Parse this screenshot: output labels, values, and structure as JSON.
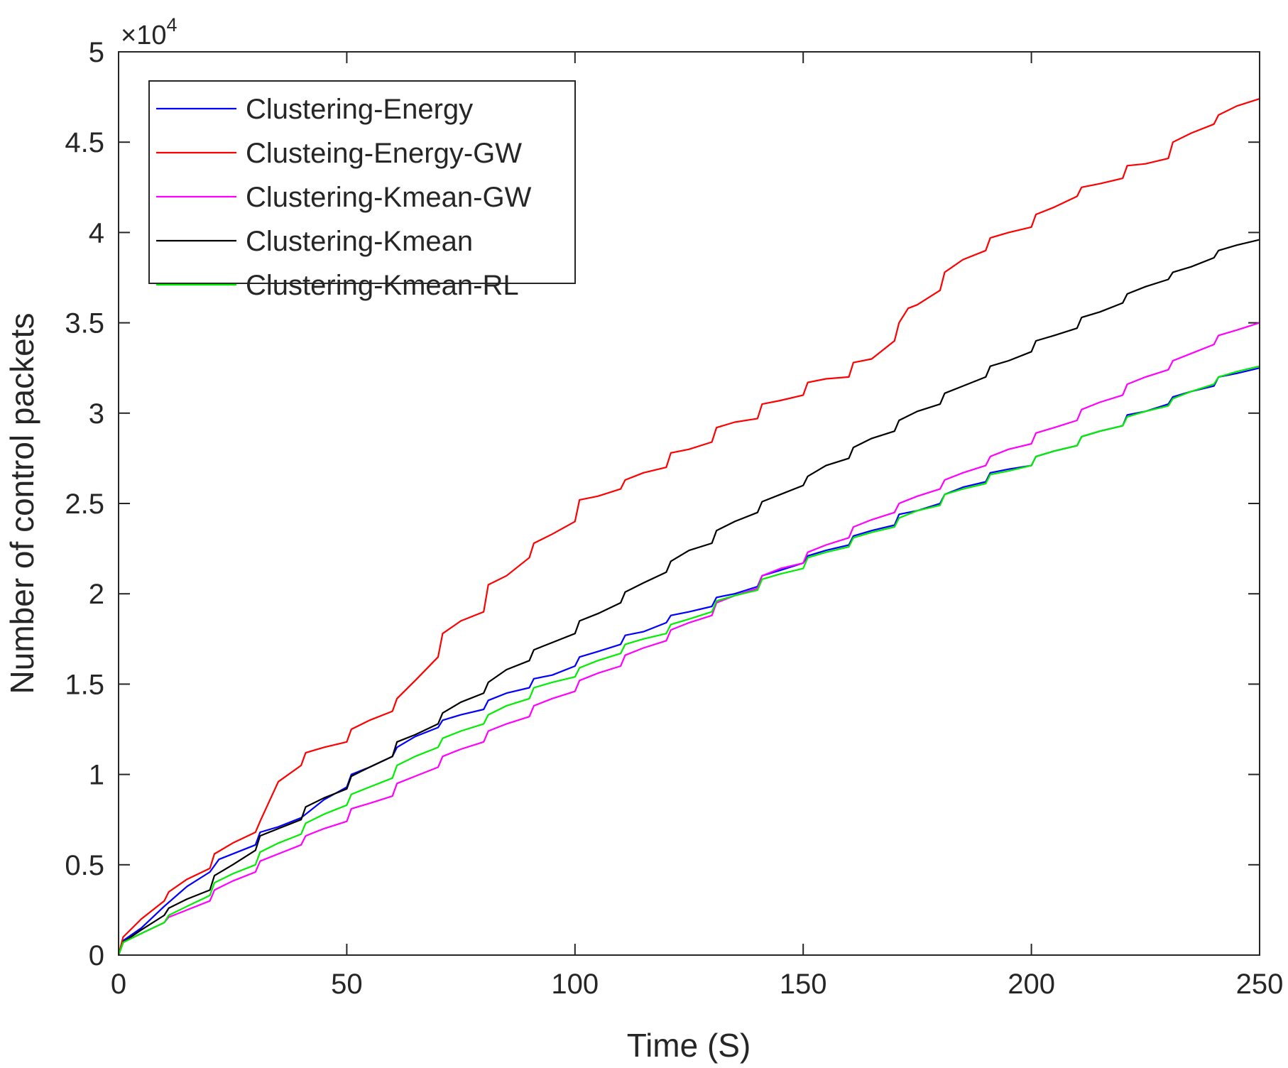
{
  "chart_data": {
    "type": "line",
    "xlabel": "Time (S)",
    "ylabel": "Number of control packets",
    "y_multiplier_label": "×10",
    "y_multiplier_exponent": "4",
    "xlim": [
      0,
      250
    ],
    "ylim": [
      0,
      5
    ],
    "xticks": [
      0,
      50,
      100,
      150,
      200,
      250
    ],
    "xtick_labels": [
      "0",
      "50",
      "100",
      "150",
      "200",
      "250"
    ],
    "yticks": [
      0,
      0.5,
      1,
      1.5,
      2,
      2.5,
      3,
      3.5,
      4,
      4.5,
      5
    ],
    "ytick_labels": [
      "0",
      "0.5",
      "1",
      "1.5",
      "2",
      "2.5",
      "3",
      "3.5",
      "4",
      "4.5",
      "5"
    ],
    "grid": false,
    "legend_position": "top-left",
    "series": [
      {
        "name": "Clustering-Energy",
        "color": "#0000ff",
        "x": [
          0,
          1,
          5,
          10,
          15,
          20,
          22,
          30,
          31,
          35,
          40,
          45,
          50,
          51,
          55,
          60,
          61,
          65,
          70,
          71,
          75,
          80,
          81,
          85,
          90,
          91,
          95,
          100,
          101,
          105,
          110,
          111,
          115,
          120,
          121,
          125,
          130,
          131,
          135,
          140,
          141,
          145,
          150,
          151,
          155,
          160,
          161,
          165,
          170,
          171,
          175,
          180,
          181,
          185,
          190,
          191,
          195,
          200,
          201,
          205,
          210,
          211,
          215,
          220,
          221,
          225,
          230,
          231,
          235,
          240,
          241,
          245,
          250
        ],
        "y": [
          0,
          0.08,
          0.15,
          0.27,
          0.38,
          0.46,
          0.53,
          0.61,
          0.68,
          0.71,
          0.76,
          0.86,
          0.93,
          1.0,
          1.04,
          1.1,
          1.15,
          1.21,
          1.26,
          1.3,
          1.33,
          1.36,
          1.41,
          1.45,
          1.48,
          1.53,
          1.55,
          1.6,
          1.65,
          1.68,
          1.72,
          1.77,
          1.79,
          1.84,
          1.88,
          1.9,
          1.93,
          1.98,
          2.0,
          2.04,
          2.1,
          2.13,
          2.17,
          2.21,
          2.24,
          2.27,
          2.32,
          2.35,
          2.38,
          2.44,
          2.46,
          2.5,
          2.55,
          2.59,
          2.62,
          2.67,
          2.69,
          2.71,
          2.76,
          2.79,
          2.82,
          2.87,
          2.9,
          2.93,
          2.99,
          3.01,
          3.05,
          3.09,
          3.12,
          3.15,
          3.2,
          3.22,
          3.25
        ]
      },
      {
        "name": "Clusteing-Energy-GW",
        "color": "#ff0000",
        "x": [
          0,
          1,
          5,
          10,
          11,
          15,
          20,
          21,
          25,
          30,
          31,
          33,
          35,
          40,
          41,
          45,
          50,
          51,
          55,
          60,
          61,
          65,
          70,
          71,
          75,
          80,
          81,
          85,
          90,
          91,
          95,
          100,
          101,
          105,
          110,
          111,
          115,
          120,
          121,
          125,
          130,
          131,
          135,
          140,
          141,
          145,
          150,
          151,
          155,
          160,
          161,
          165,
          170,
          171,
          173,
          175,
          180,
          181,
          185,
          190,
          191,
          195,
          200,
          201,
          205,
          210,
          211,
          215,
          220,
          221,
          225,
          230,
          231,
          235,
          240,
          241,
          245,
          250
        ],
        "y": [
          0,
          0.1,
          0.2,
          0.3,
          0.35,
          0.42,
          0.48,
          0.56,
          0.62,
          0.68,
          0.74,
          0.85,
          0.96,
          1.05,
          1.12,
          1.15,
          1.18,
          1.25,
          1.3,
          1.35,
          1.42,
          1.52,
          1.65,
          1.78,
          1.85,
          1.9,
          2.05,
          2.1,
          2.2,
          2.28,
          2.33,
          2.4,
          2.52,
          2.54,
          2.58,
          2.63,
          2.67,
          2.7,
          2.78,
          2.8,
          2.84,
          2.92,
          2.95,
          2.97,
          3.05,
          3.07,
          3.1,
          3.17,
          3.19,
          3.2,
          3.28,
          3.3,
          3.4,
          3.5,
          3.58,
          3.6,
          3.68,
          3.78,
          3.85,
          3.9,
          3.97,
          4.0,
          4.03,
          4.1,
          4.14,
          4.2,
          4.25,
          4.27,
          4.3,
          4.37,
          4.38,
          4.41,
          4.5,
          4.55,
          4.6,
          4.65,
          4.7,
          4.74
        ]
      },
      {
        "name": "Clustering-Kmean-GW",
        "color": "#ff00ff",
        "x": [
          0,
          1,
          5,
          10,
          11,
          15,
          20,
          21,
          25,
          30,
          31,
          35,
          40,
          41,
          45,
          50,
          51,
          55,
          60,
          61,
          65,
          70,
          71,
          75,
          80,
          81,
          85,
          90,
          91,
          95,
          100,
          101,
          105,
          110,
          111,
          115,
          120,
          121,
          125,
          130,
          131,
          135,
          140,
          141,
          145,
          150,
          151,
          155,
          160,
          161,
          165,
          170,
          171,
          175,
          180,
          181,
          185,
          190,
          191,
          195,
          200,
          201,
          205,
          210,
          211,
          215,
          220,
          221,
          225,
          230,
          231,
          235,
          240,
          241,
          245,
          250
        ],
        "y": [
          0,
          0.07,
          0.12,
          0.18,
          0.21,
          0.25,
          0.3,
          0.36,
          0.41,
          0.46,
          0.52,
          0.56,
          0.61,
          0.66,
          0.7,
          0.74,
          0.81,
          0.84,
          0.88,
          0.95,
          0.99,
          1.04,
          1.1,
          1.14,
          1.18,
          1.24,
          1.28,
          1.32,
          1.38,
          1.42,
          1.46,
          1.52,
          1.56,
          1.6,
          1.66,
          1.7,
          1.74,
          1.8,
          1.84,
          1.88,
          1.95,
          1.99,
          2.03,
          2.1,
          2.14,
          2.17,
          2.23,
          2.27,
          2.31,
          2.37,
          2.41,
          2.45,
          2.5,
          2.54,
          2.58,
          2.63,
          2.67,
          2.71,
          2.76,
          2.8,
          2.83,
          2.89,
          2.92,
          2.96,
          3.02,
          3.06,
          3.1,
          3.16,
          3.2,
          3.24,
          3.29,
          3.33,
          3.38,
          3.43,
          3.46,
          3.5
        ]
      },
      {
        "name": "Clustering-Kmean",
        "color": "#000000",
        "x": [
          0,
          1,
          5,
          10,
          11,
          15,
          20,
          21,
          25,
          30,
          31,
          35,
          40,
          41,
          45,
          50,
          51,
          55,
          60,
          61,
          65,
          70,
          71,
          75,
          80,
          81,
          85,
          90,
          91,
          95,
          100,
          101,
          105,
          110,
          111,
          115,
          120,
          121,
          125,
          130,
          131,
          135,
          140,
          141,
          145,
          150,
          151,
          155,
          160,
          161,
          165,
          170,
          171,
          175,
          180,
          181,
          185,
          190,
          191,
          195,
          200,
          201,
          205,
          210,
          211,
          215,
          220,
          221,
          225,
          230,
          231,
          235,
          240,
          241,
          245,
          250
        ],
        "y": [
          0,
          0.07,
          0.14,
          0.22,
          0.26,
          0.31,
          0.36,
          0.44,
          0.5,
          0.58,
          0.66,
          0.7,
          0.75,
          0.82,
          0.87,
          0.92,
          0.99,
          1.04,
          1.1,
          1.18,
          1.22,
          1.28,
          1.34,
          1.4,
          1.45,
          1.51,
          1.58,
          1.63,
          1.69,
          1.73,
          1.78,
          1.85,
          1.89,
          1.95,
          2.01,
          2.06,
          2.12,
          2.18,
          2.24,
          2.28,
          2.35,
          2.4,
          2.45,
          2.51,
          2.55,
          2.6,
          2.65,
          2.71,
          2.75,
          2.81,
          2.86,
          2.9,
          2.96,
          3.01,
          3.05,
          3.11,
          3.15,
          3.2,
          3.26,
          3.29,
          3.34,
          3.4,
          3.43,
          3.47,
          3.53,
          3.56,
          3.61,
          3.66,
          3.7,
          3.74,
          3.78,
          3.81,
          3.86,
          3.9,
          3.93,
          3.96
        ]
      },
      {
        "name": "Clustering-Kmean-RL",
        "color": "#00ee00",
        "x": [
          0,
          1,
          5,
          10,
          11,
          15,
          20,
          21,
          25,
          30,
          31,
          35,
          40,
          41,
          45,
          50,
          51,
          55,
          60,
          61,
          65,
          70,
          71,
          75,
          80,
          81,
          85,
          90,
          91,
          95,
          100,
          101,
          105,
          110,
          111,
          115,
          120,
          121,
          125,
          130,
          131,
          135,
          140,
          141,
          145,
          150,
          151,
          155,
          160,
          161,
          165,
          170,
          171,
          175,
          180,
          181,
          185,
          190,
          191,
          195,
          200,
          201,
          205,
          210,
          211,
          215,
          220,
          221,
          225,
          230,
          231,
          235,
          240,
          241,
          245,
          250
        ],
        "y": [
          0,
          0.07,
          0.12,
          0.18,
          0.22,
          0.27,
          0.33,
          0.4,
          0.45,
          0.5,
          0.57,
          0.62,
          0.67,
          0.73,
          0.78,
          0.83,
          0.89,
          0.93,
          0.98,
          1.05,
          1.1,
          1.15,
          1.2,
          1.24,
          1.28,
          1.33,
          1.38,
          1.42,
          1.48,
          1.51,
          1.54,
          1.59,
          1.63,
          1.67,
          1.72,
          1.75,
          1.78,
          1.83,
          1.86,
          1.9,
          1.96,
          1.99,
          2.02,
          2.08,
          2.11,
          2.14,
          2.2,
          2.23,
          2.26,
          2.31,
          2.34,
          2.37,
          2.42,
          2.46,
          2.49,
          2.55,
          2.58,
          2.61,
          2.66,
          2.68,
          2.71,
          2.76,
          2.79,
          2.82,
          2.87,
          2.9,
          2.93,
          2.98,
          3.01,
          3.04,
          3.08,
          3.12,
          3.16,
          3.2,
          3.23,
          3.26
        ]
      }
    ]
  }
}
